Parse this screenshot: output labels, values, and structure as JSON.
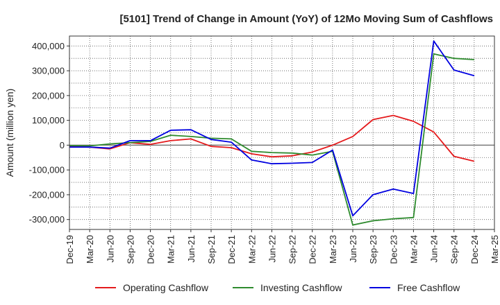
{
  "chart_data": {
    "type": "line",
    "title": "[5101]  Trend of Change in Amount (YoY) of 12Mo Moving Sum of Cashflows",
    "xlabel": "",
    "ylabel": "Amount (million yen)",
    "ylim": [
      -340000,
      440000
    ],
    "yticks": [
      400000,
      300000,
      200000,
      100000,
      0,
      -100000,
      -200000,
      -300000
    ],
    "ytick_labels": [
      "400,000",
      "300,000",
      "200,000",
      "100,000",
      "0",
      "-100,000",
      "-200,000",
      "-300,000"
    ],
    "categories": [
      "Dec-19",
      "Mar-20",
      "Jun-20",
      "Sep-20",
      "Dec-20",
      "Mar-21",
      "Jun-21",
      "Sep-21",
      "Dec-21",
      "Mar-22",
      "Jun-22",
      "Sep-22",
      "Dec-22",
      "Mar-23",
      "Jun-23",
      "Sep-23",
      "Dec-23",
      "Mar-24",
      "Jun-24",
      "Sep-24",
      "Dec-24",
      "Mar-25"
    ],
    "grid": true,
    "legend_position": "bottom",
    "series": [
      {
        "name": "Operating Cashflow",
        "color": "#e41a1c",
        "values": [
          -5000,
          -8000,
          -15000,
          10000,
          3000,
          18000,
          25000,
          -5000,
          -10000,
          -35000,
          -47000,
          -43000,
          -28000,
          0,
          35000,
          103000,
          120000,
          96000,
          53000,
          -45000,
          -65000,
          null
        ]
      },
      {
        "name": "Investing Cashflow",
        "color": "#2e8b2e",
        "values": [
          -2000,
          -3000,
          5000,
          10000,
          15000,
          40000,
          35000,
          28000,
          25000,
          -25000,
          -30000,
          -32000,
          -40000,
          -25000,
          -322000,
          -305000,
          -297000,
          -292000,
          368000,
          350000,
          345000,
          null
        ]
      },
      {
        "name": "Free Cashflow",
        "color": "#0000e0",
        "values": [
          -8000,
          -8000,
          -12000,
          18000,
          18000,
          60000,
          62000,
          23000,
          12000,
          -60000,
          -75000,
          -73000,
          -70000,
          -20000,
          -285000,
          -200000,
          -177000,
          -195000,
          420000,
          303000,
          280000,
          null
        ]
      }
    ]
  }
}
